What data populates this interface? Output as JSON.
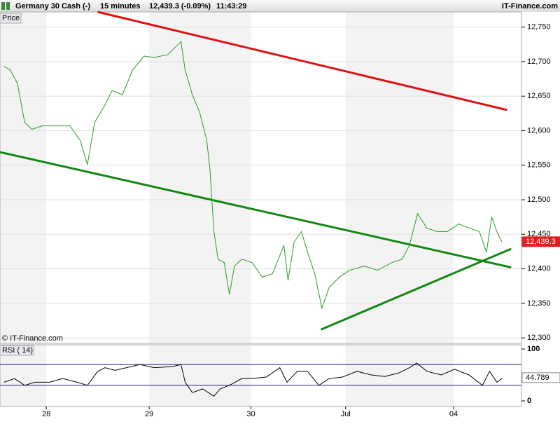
{
  "header": {
    "instrument": "Germany 30 Cash (-)",
    "interval": "15 minutes",
    "quote": "12,439.3 (-0.09%)",
    "time": "11:43:29",
    "site": "IT-Finance.com"
  },
  "chart_data": [
    {
      "type": "line",
      "title": "Price",
      "annotation": "© IT-Finance.com",
      "xlim": [
        -0.45,
        4.62
      ],
      "ylim": [
        12292,
        12772
      ],
      "yticks": [
        {
          "value": 12300,
          "label": "12,300"
        },
        {
          "value": 12350,
          "label": "12,350"
        },
        {
          "value": 12400,
          "label": "12,400"
        },
        {
          "value": 12450,
          "label": "12,450"
        },
        {
          "value": 12500,
          "label": "12,500"
        },
        {
          "value": 12550,
          "label": "12,550"
        },
        {
          "value": 12600,
          "label": "12,600"
        },
        {
          "value": 12650,
          "label": "12,650"
        },
        {
          "value": 12700,
          "label": "12,700"
        },
        {
          "value": 12750,
          "label": "12,750"
        }
      ],
      "grid": true,
      "last": {
        "value": 12439.3,
        "label": "12,439.3"
      },
      "series": [
        {
          "color": "#2a9a2a",
          "x": [
            -0.41,
            -0.35,
            -0.28,
            -0.21,
            -0.14,
            -0.04,
            0.1,
            0.23,
            0.33,
            0.4,
            0.47,
            0.57,
            0.64,
            0.74,
            0.84,
            0.95,
            1.05,
            1.18,
            1.31,
            1.35,
            1.42,
            1.49,
            1.56,
            1.59,
            1.63,
            1.67,
            1.73,
            1.78,
            1.83,
            1.9,
            2.0,
            2.1,
            2.2,
            2.31,
            2.35,
            2.41,
            2.48,
            2.54,
            2.61,
            2.68,
            2.75,
            2.85,
            2.95,
            3.09,
            3.22,
            3.36,
            3.46,
            3.53,
            3.61,
            3.7,
            3.8,
            3.9,
            4.01,
            4.11,
            4.21,
            4.28,
            4.33,
            4.38,
            4.43
          ],
          "values": [
            12693,
            12688,
            12668,
            12612,
            12602,
            12607,
            12607,
            12607,
            12586,
            12551,
            12612,
            12637,
            12658,
            12652,
            12688,
            12708,
            12706,
            12710,
            12729,
            12688,
            12652,
            12627,
            12586,
            12546,
            12454,
            12414,
            12409,
            12363,
            12404,
            12414,
            12409,
            12388,
            12393,
            12434,
            12383,
            12439,
            12454,
            12424,
            12393,
            12343,
            12373,
            12388,
            12398,
            12404,
            12398,
            12409,
            12414,
            12434,
            12480,
            12459,
            12454,
            12454,
            12465,
            12459,
            12454,
            12424,
            12475,
            12454,
            12439
          ]
        }
      ],
      "trendlines": [
        {
          "color": "#e01010",
          "x": [
            0.5,
            4.48
          ],
          "values": [
            12772,
            12630
          ]
        },
        {
          "color": "#118811",
          "x": [
            -0.45,
            4.52
          ],
          "values": [
            12569,
            12402
          ]
        },
        {
          "color": "#118811",
          "x": [
            2.67,
            4.52
          ],
          "values": [
            12312,
            12429
          ]
        }
      ]
    },
    {
      "type": "line",
      "title": "RSI ( 14)",
      "xlim": [
        -0.45,
        4.62
      ],
      "ylim": [
        -10.8,
        108.1
      ],
      "yticks": [
        0,
        100
      ],
      "levels": [
        30,
        70
      ],
      "xticks": [
        {
          "value": 0,
          "label": "28"
        },
        {
          "value": 1.0,
          "label": "29"
        },
        {
          "value": 1.99,
          "label": "30"
        },
        {
          "value": 2.91,
          "label": "Jul"
        },
        {
          "value": 3.96,
          "label": "04"
        }
      ],
      "last": 44.789,
      "series": [
        {
          "color": "#000000",
          "x": [
            -0.41,
            -0.31,
            -0.21,
            -0.11,
            0.03,
            0.16,
            0.3,
            0.4,
            0.5,
            0.57,
            0.67,
            0.78,
            0.91,
            1.05,
            1.22,
            1.31,
            1.35,
            1.42,
            1.52,
            1.63,
            1.69,
            1.8,
            1.9,
            2.0,
            2.14,
            2.27,
            2.34,
            2.44,
            2.54,
            2.65,
            2.75,
            2.88,
            3.02,
            3.16,
            3.29,
            3.43,
            3.53,
            3.6,
            3.7,
            3.84,
            3.97,
            4.11,
            4.24,
            4.31,
            4.38,
            4.43
          ],
          "values": [
            36,
            43,
            30,
            36,
            36,
            43,
            36,
            30,
            57,
            64,
            59,
            64,
            70,
            64,
            66,
            70,
            36,
            16,
            23,
            9,
            23,
            32,
            43,
            43,
            46,
            64,
            36,
            57,
            57,
            30,
            43,
            46,
            57,
            50,
            47,
            54,
            64,
            73,
            57,
            50,
            61,
            50,
            30,
            57,
            36,
            43
          ]
        }
      ]
    }
  ]
}
